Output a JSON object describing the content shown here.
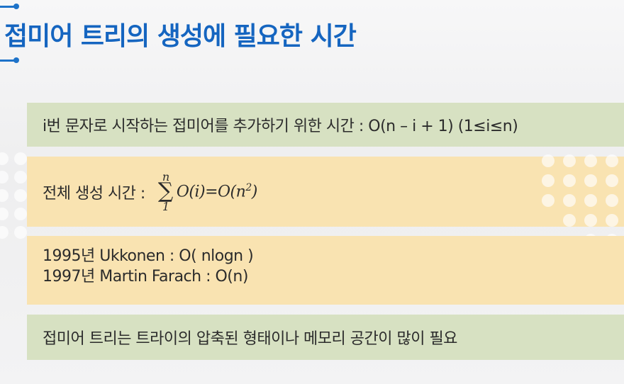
{
  "title": "접미어 트리의 생성에 필요한 시간",
  "panels": {
    "p1": "i번 문자로 시작하는 접미어를 추가하기 위한 시간 : O(n – i + 1)  (1≤i≤n)",
    "p2": {
      "label": "전체 생성 시간 :",
      "sum_upper": "n",
      "sum_symbol": "∑",
      "sum_lower": "1",
      "formula": "O(i)=O(n",
      "exponent": "2",
      "formula_close": ")"
    },
    "p3": [
      "1995년 Ukkonen : O( nlogn )",
      "1997년 Martin Farach : O(n)"
    ],
    "p4": "접미어 트리는 트라이의 압축된 형태이나 메모리 공간이 많이 필요"
  },
  "colors": {
    "title": "#1565c0",
    "green_panel": "#d7e1c2",
    "yellow_panel": "#f9e3b1",
    "accent": "#1e73c9"
  }
}
